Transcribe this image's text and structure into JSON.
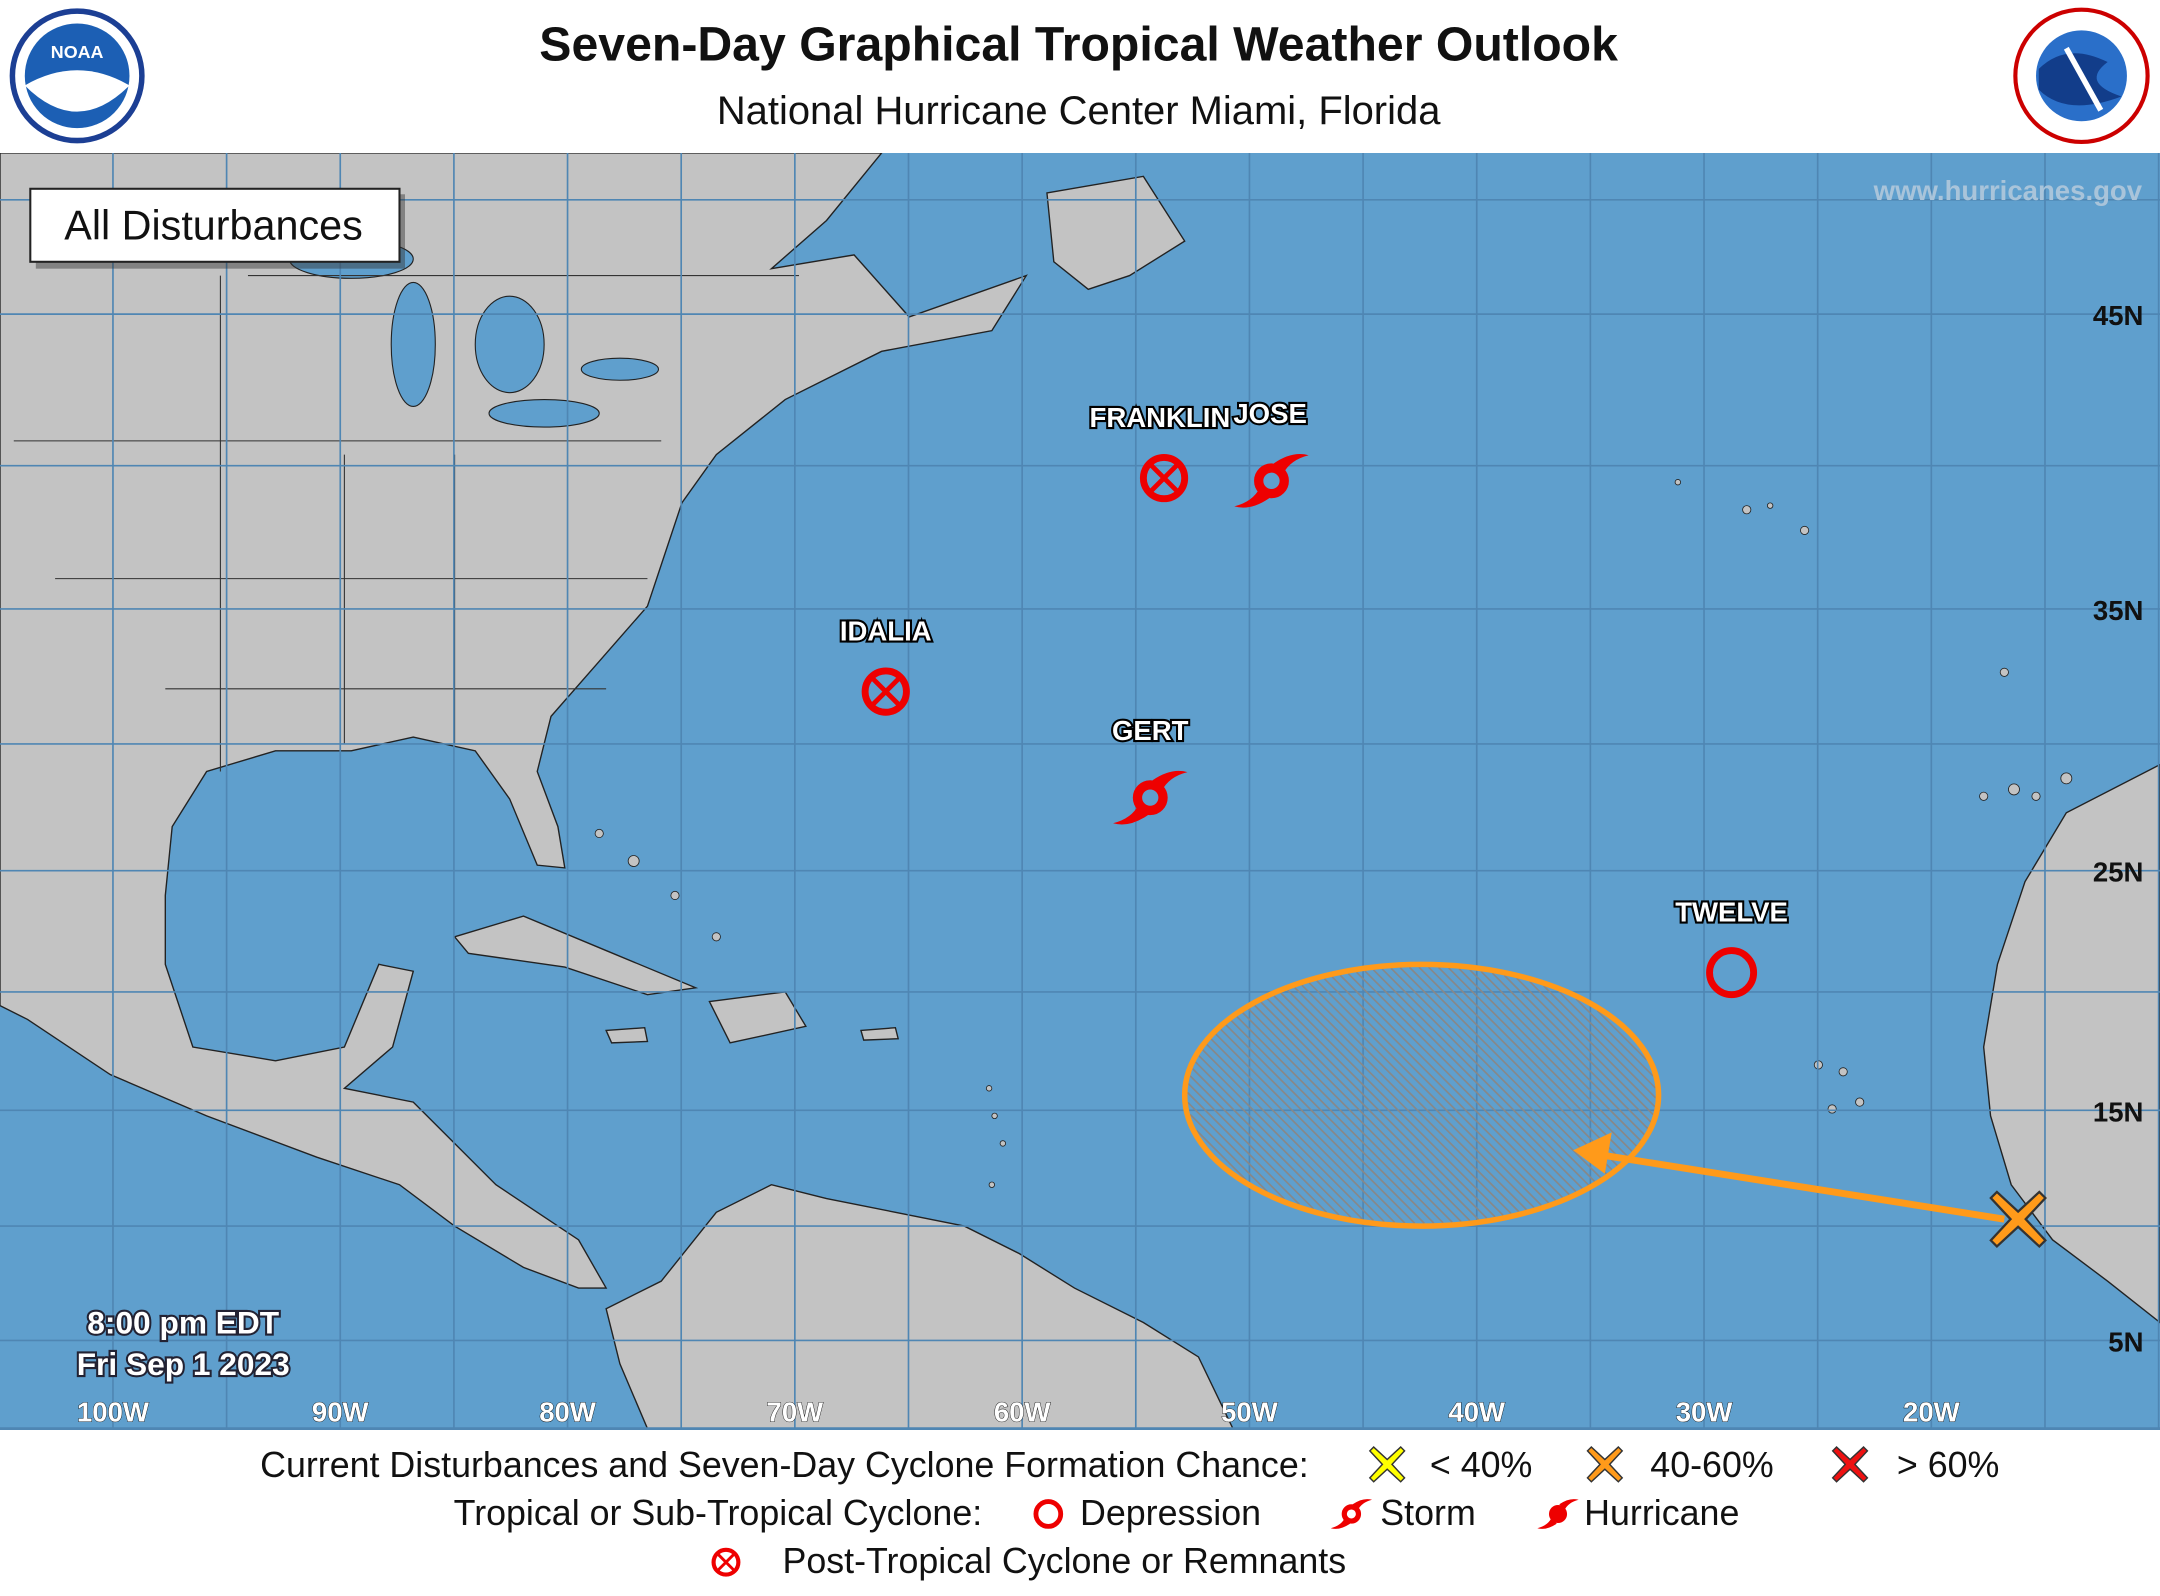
{
  "header": {
    "title": "Seven-Day Graphical Tropical Weather Outlook",
    "subtitle": "National Hurricane Center  Miami, Florida",
    "left_logo": "NOAA",
    "right_logo": "NATIONAL WEATHER SERVICE"
  },
  "map": {
    "view_label": "All Disturbances",
    "watermark": "www.hurricanes.gov",
    "time": "8:00 pm EDT",
    "date": "Fri Sep 1 2023",
    "longitude_labels": [
      "100W",
      "90W",
      "80W",
      "70W",
      "60W",
      "50W",
      "40W",
      "30W",
      "20W"
    ],
    "latitude_labels": [
      "45N",
      "35N",
      "25N",
      "15N",
      "5N"
    ],
    "colors": {
      "ocean": "#5f9fcd",
      "land": "#c3c3c3",
      "cyclone": "#ee0000",
      "disturbance_40_60": "#ff9a1a",
      "low_chance": "#ffff00",
      "high_chance": "#ee1111"
    },
    "cyclones": [
      {
        "name": "FRANKLIN",
        "type": "post-tropical"
      },
      {
        "name": "JOSE",
        "type": "storm"
      },
      {
        "name": "IDALIA",
        "type": "post-tropical"
      },
      {
        "name": "GERT",
        "type": "storm"
      },
      {
        "name": "TWELVE",
        "type": "depression"
      }
    ],
    "disturbances": [
      {
        "formation_chance_category": "40-60%",
        "icon": "orange-x-icon",
        "track": "westward arrow to hatched area"
      }
    ]
  },
  "legend": {
    "line1_label": "Current Disturbances and Seven-Day Cyclone Formation Chance:",
    "low": "< 40%",
    "medium": "40-60%",
    "high": "> 60%",
    "line2_label": "Tropical or Sub-Tropical Cyclone:",
    "depression": "Depression",
    "storm": "Storm",
    "hurricane": "Hurricane",
    "post_tropical": "Post-Tropical Cyclone or Remnants"
  }
}
